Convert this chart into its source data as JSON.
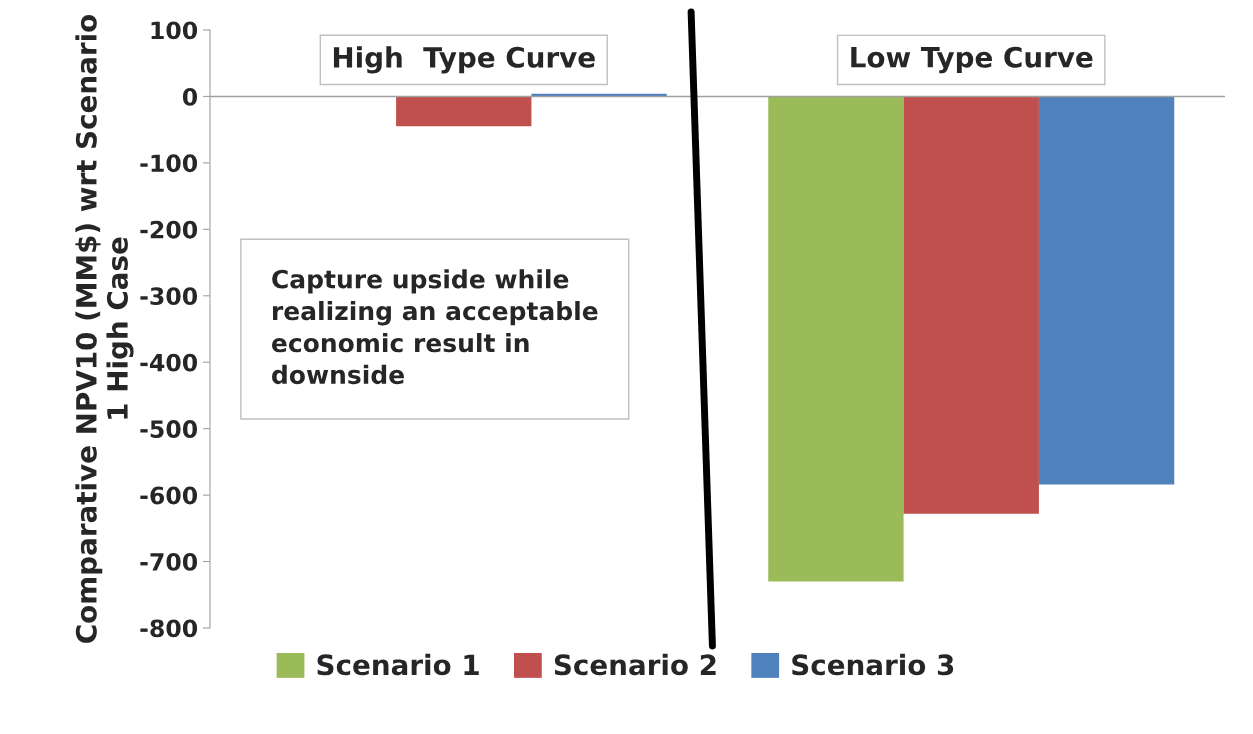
{
  "chart_data": {
    "type": "bar",
    "ylabel": "Comparative NPV10 (MM$) wrt Scenario 1 High Case",
    "categories": [
      "High  Type Curve",
      "Low Type Curve"
    ],
    "series": [
      {
        "name": "Scenario 1",
        "color": "#9bbb59",
        "values": [
          null,
          -730
        ]
      },
      {
        "name": "Scenario 2",
        "color": "#c0504d",
        "values": [
          -45,
          -628
        ]
      },
      {
        "name": "Scenario 3",
        "color": "#4f81bd",
        "values": [
          4,
          -584
        ]
      }
    ],
    "ylim": [
      -800,
      100
    ],
    "yticks": [
      100,
      0,
      -100,
      -200,
      -300,
      -400,
      -500,
      -600,
      -700,
      -800
    ],
    "annotations": [
      "Capture upside while\nrealizing an acceptable\neconomic result in\ndownside"
    ],
    "grid": false,
    "legend": "bottom"
  }
}
